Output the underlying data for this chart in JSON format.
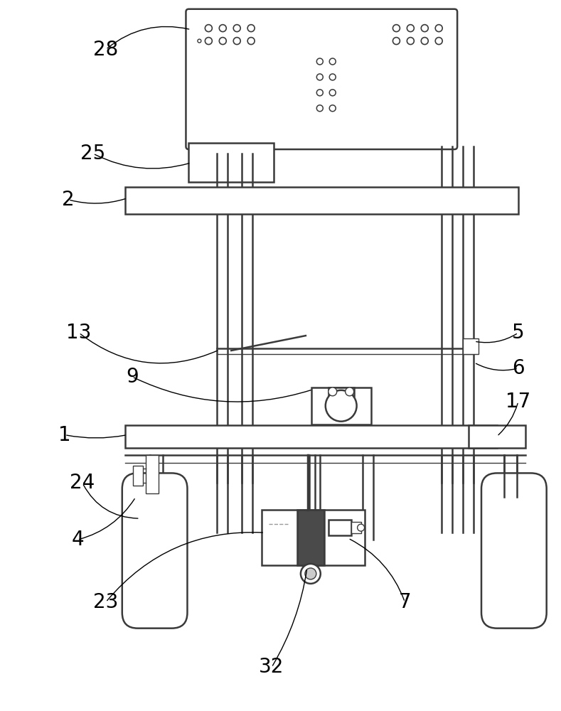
{
  "bg_color": "#ffffff",
  "line_color": "#3a3a3a",
  "gray_color": "#aaaaaa",
  "figsize": [
    7.89,
    10.0
  ],
  "dpi": 100,
  "label_fontsize": 20
}
